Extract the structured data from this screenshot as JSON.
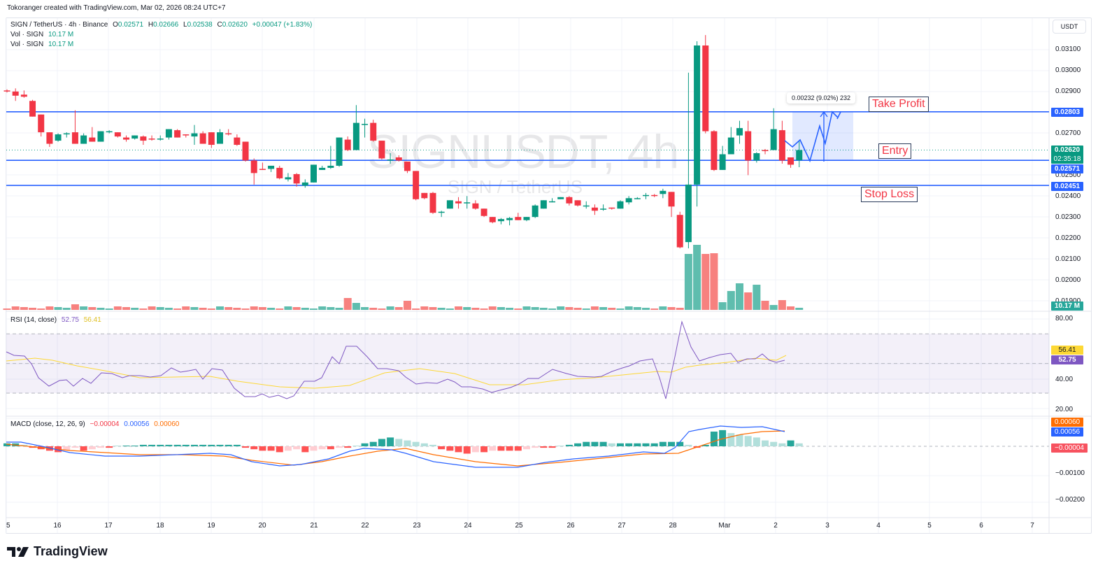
{
  "credit": "Tokoranger created with TradingView.com, Mar 02, 2026 08:24 UTC+7",
  "legend": {
    "symbol": "SIGN / TetherUS · 4h · Binance",
    "o_label": "O",
    "o": "0.02571",
    "h_label": "H",
    "h": "0.02666",
    "l_label": "L",
    "l": "0.02538",
    "c_label": "C",
    "c": "0.02620",
    "change": "+0.00047 (+1.83%)",
    "vol1_label": "Vol · SIGN",
    "vol1": "10.17 M",
    "vol2_label": "Vol · SIGN",
    "vol2": "10.17 M"
  },
  "watermark": {
    "main": "SIGNUSDT, 4h",
    "sub": "SIGN / TetherUS"
  },
  "currency_button": "USDT",
  "price_axis": [
    "0.03100",
    "0.03000",
    "0.02900",
    "0.02700",
    "0.02500",
    "0.02400",
    "0.02300",
    "0.02200",
    "0.02100",
    "0.02000",
    "0.01900"
  ],
  "price_tags": {
    "take_profit": "0.02803",
    "current": "0.02620",
    "countdown": "02:35:18",
    "entry": "0.02571",
    "stop_loss": "0.02451",
    "volume": "10.17 M"
  },
  "annotations": {
    "take_profit": "Take Profit",
    "entry": "Entry",
    "stop_loss": "Stop Loss",
    "measure": "0.00232 (9.02%) 232"
  },
  "rsi": {
    "label": "RSI (14, close)",
    "value": "52.75",
    "ma": "56.41",
    "axis": [
      "80.00",
      "40.00",
      "20.00"
    ]
  },
  "macd": {
    "label": "MACD (close, 12, 26, 9)",
    "hist": "−0.00004",
    "macd": "0.00056",
    "signal": "0.00060",
    "axis": [
      "−0.00100",
      "−0.00200"
    ]
  },
  "time_axis": [
    "5",
    "16",
    "17",
    "18",
    "19",
    "20",
    "21",
    "22",
    "23",
    "24",
    "25",
    "26",
    "27",
    "28",
    "Mar",
    "2",
    "3",
    "4",
    "5",
    "6",
    "7"
  ],
  "brand": "TradingView",
  "colors": {
    "up": "#089981",
    "down": "#f23645",
    "vol_up": "#5fbdae",
    "vol_down": "#f7817f",
    "level_line": "#2962ff",
    "rsi": "#7e57c2",
    "rsi_ma": "#fdd835",
    "macd": "#2962ff",
    "signal": "#ff6d00"
  },
  "chart_data": {
    "type": "candlestick",
    "title": "SIGN / TetherUS · 4h · Binance",
    "xlabel": "",
    "ylabel": "USDT",
    "ylim": [
      0.0189,
      0.0318
    ],
    "grid": true,
    "levels": {
      "take_profit": 0.02803,
      "entry": 0.02571,
      "stop_loss": 0.02451
    },
    "candles": [
      [
        0.02905,
        0.0291,
        0.02895,
        0.029
      ],
      [
        0.029,
        0.02915,
        0.02855,
        0.0288
      ],
      [
        0.02885,
        0.02905,
        0.0287,
        0.02875
      ],
      [
        0.02855,
        0.0286,
        0.0278,
        0.0278
      ],
      [
        0.0279,
        0.0279,
        0.02685,
        0.02705
      ],
      [
        0.02705,
        0.02705,
        0.02635,
        0.0265
      ],
      [
        0.02665,
        0.027,
        0.0266,
        0.02695
      ],
      [
        0.02695,
        0.02705,
        0.0268,
        0.027
      ],
      [
        0.02705,
        0.0281,
        0.0265,
        0.0265
      ],
      [
        0.0265,
        0.027,
        0.0265,
        0.0269
      ],
      [
        0.0268,
        0.0273,
        0.0266,
        0.0266
      ],
      [
        0.0266,
        0.0271,
        0.0266,
        0.0271
      ],
      [
        0.0271,
        0.02715,
        0.027,
        0.0271
      ],
      [
        0.02705,
        0.02705,
        0.0268,
        0.02685
      ],
      [
        0.0268,
        0.0269,
        0.0266,
        0.0267
      ],
      [
        0.02675,
        0.0269,
        0.0267,
        0.0269
      ],
      [
        0.02685,
        0.0269,
        0.02645,
        0.02665
      ],
      [
        0.02675,
        0.0269,
        0.02665,
        0.0267
      ],
      [
        0.02675,
        0.0269,
        0.02665,
        0.02675
      ],
      [
        0.0268,
        0.0272,
        0.0267,
        0.0272
      ],
      [
        0.02715,
        0.0272,
        0.0268,
        0.0268
      ],
      [
        0.02695,
        0.02695,
        0.0268,
        0.0269
      ],
      [
        0.02685,
        0.0274,
        0.02645,
        0.027
      ],
      [
        0.027,
        0.0271,
        0.0265,
        0.0265
      ],
      [
        0.02705,
        0.02705,
        0.0263,
        0.02645
      ],
      [
        0.0265,
        0.0272,
        0.0265,
        0.02705
      ],
      [
        0.027,
        0.0272,
        0.0269,
        0.02695
      ],
      [
        0.0268,
        0.02695,
        0.0264,
        0.02645
      ],
      [
        0.0266,
        0.0266,
        0.02565,
        0.0257
      ],
      [
        0.0257,
        0.0258,
        0.02455,
        0.0251
      ],
      [
        0.0253,
        0.0256,
        0.02525,
        0.02525
      ],
      [
        0.0253,
        0.02545,
        0.02515,
        0.02545
      ],
      [
        0.02535,
        0.02545,
        0.0248,
        0.02485
      ],
      [
        0.0248,
        0.0251,
        0.0247,
        0.0249
      ],
      [
        0.02505,
        0.0251,
        0.02445,
        0.0246
      ],
      [
        0.0245,
        0.0248,
        0.0244,
        0.02465
      ],
      [
        0.02465,
        0.0255,
        0.02465,
        0.0255
      ],
      [
        0.02525,
        0.02545,
        0.02525,
        0.02535
      ],
      [
        0.02535,
        0.0264,
        0.0253,
        0.02545
      ],
      [
        0.02545,
        0.0268,
        0.0254,
        0.0268
      ],
      [
        0.0267,
        0.02685,
        0.02615,
        0.0262
      ],
      [
        0.0262,
        0.02835,
        0.0262,
        0.0275
      ],
      [
        0.0274,
        0.0277,
        0.0268,
        0.02745
      ],
      [
        0.0275,
        0.02765,
        0.0266,
        0.02665
      ],
      [
        0.02665,
        0.02665,
        0.02575,
        0.0258
      ],
      [
        0.02575,
        0.02605,
        0.02555,
        0.02575
      ],
      [
        0.02585,
        0.02595,
        0.02565,
        0.0257
      ],
      [
        0.02565,
        0.02565,
        0.0251,
        0.0252
      ],
      [
        0.0252,
        0.0252,
        0.0238,
        0.02385
      ],
      [
        0.02415,
        0.02415,
        0.02385,
        0.0239
      ],
      [
        0.02415,
        0.0242,
        0.02315,
        0.0232
      ],
      [
        0.02325,
        0.0233,
        0.023,
        0.02325
      ],
      [
        0.0234,
        0.0238,
        0.0234,
        0.0238
      ],
      [
        0.02375,
        0.02395,
        0.0234,
        0.02365
      ],
      [
        0.0237,
        0.024,
        0.0234,
        0.0237
      ],
      [
        0.02365,
        0.0238,
        0.02335,
        0.0234
      ],
      [
        0.0234,
        0.0234,
        0.023,
        0.02305
      ],
      [
        0.023,
        0.023,
        0.0227,
        0.02275
      ],
      [
        0.0228,
        0.02295,
        0.02265,
        0.0229
      ],
      [
        0.02285,
        0.023,
        0.0226,
        0.02295
      ],
      [
        0.023,
        0.0232,
        0.02285,
        0.02285
      ],
      [
        0.02285,
        0.023,
        0.0228,
        0.023
      ],
      [
        0.023,
        0.0236,
        0.02295,
        0.02355
      ],
      [
        0.0234,
        0.0238,
        0.0234,
        0.0238
      ],
      [
        0.02375,
        0.0239,
        0.0237,
        0.02375
      ],
      [
        0.02385,
        0.02395,
        0.02385,
        0.02395
      ],
      [
        0.02395,
        0.024,
        0.02355,
        0.02365
      ],
      [
        0.0238,
        0.0238,
        0.0235,
        0.02355
      ],
      [
        0.02355,
        0.02375,
        0.0234,
        0.02355
      ],
      [
        0.02345,
        0.0236,
        0.0231,
        0.0233
      ],
      [
        0.0234,
        0.0236,
        0.0233,
        0.0234
      ],
      [
        0.02345,
        0.02345,
        0.02335,
        0.0234
      ],
      [
        0.0234,
        0.0238,
        0.0234,
        0.02375
      ],
      [
        0.0237,
        0.024,
        0.0236,
        0.0239
      ],
      [
        0.02385,
        0.02395,
        0.02385,
        0.0239
      ],
      [
        0.024,
        0.02415,
        0.02385,
        0.02405
      ],
      [
        0.02405,
        0.0241,
        0.02395,
        0.024
      ],
      [
        0.0241,
        0.02435,
        0.0239,
        0.02425
      ],
      [
        0.0242,
        0.0242,
        0.023,
        0.0235
      ],
      [
        0.0231,
        0.02325,
        0.0215,
        0.02155
      ],
      [
        0.0218,
        0.0299,
        0.0215,
        0.02455
      ],
      [
        0.02455,
        0.0314,
        0.0235,
        0.0312
      ],
      [
        0.0312,
        0.0317,
        0.027,
        0.0271
      ],
      [
        0.0271,
        0.02715,
        0.0252,
        0.02525
      ],
      [
        0.02525,
        0.0264,
        0.02525,
        0.026
      ],
      [
        0.026,
        0.0273,
        0.026,
        0.0268
      ],
      [
        0.0269,
        0.0276,
        0.0265,
        0.02725
      ],
      [
        0.0271,
        0.0276,
        0.025,
        0.0257
      ],
      [
        0.0257,
        0.0261,
        0.0256,
        0.02605
      ],
      [
        0.0262,
        0.02625,
        0.026,
        0.02615
      ],
      [
        0.0262,
        0.0282,
        0.0262,
        0.0272
      ],
      [
        0.02715,
        0.0276,
        0.02555,
        0.0257
      ],
      [
        0.02585,
        0.0258,
        0.02535,
        0.0255
      ],
      [
        0.02571,
        0.02666,
        0.02538,
        0.0262
      ]
    ],
    "volume_last": "10.17 M",
    "rsi": {
      "period": 14,
      "last": 52.75,
      "ma_last": 56.41,
      "ylim": [
        20,
        80
      ],
      "band": [
        30,
        70
      ]
    },
    "macd": {
      "fast": 12,
      "slow": 26,
      "signal": 9,
      "hist_last": -4e-05,
      "macd_last": 0.00056,
      "signal_last": 0.0006
    },
    "projection": {
      "from": 0.02571,
      "to": 0.02803,
      "delta": "0.00232",
      "pct": "9.02%",
      "bars": 232
    }
  }
}
